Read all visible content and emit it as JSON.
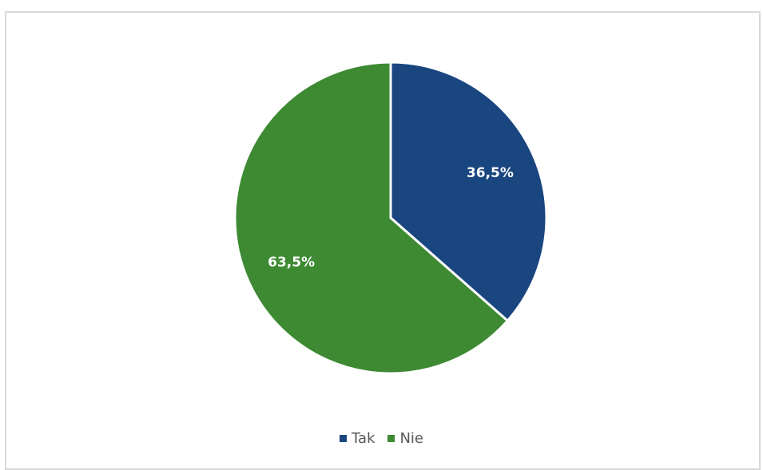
{
  "chart_data": {
    "type": "pie",
    "title": "",
    "categories": [
      "Tak",
      "Nie"
    ],
    "values": [
      36.5,
      63.5
    ],
    "labels": [
      "36,5%",
      "63,5%"
    ],
    "colors": [
      "#1a4680",
      "#3d8a33"
    ],
    "legend_position": "bottom"
  },
  "legend": {
    "items": [
      {
        "label": "Tak",
        "color": "#1a4680"
      },
      {
        "label": "Nie",
        "color": "#3d8a33"
      }
    ]
  }
}
